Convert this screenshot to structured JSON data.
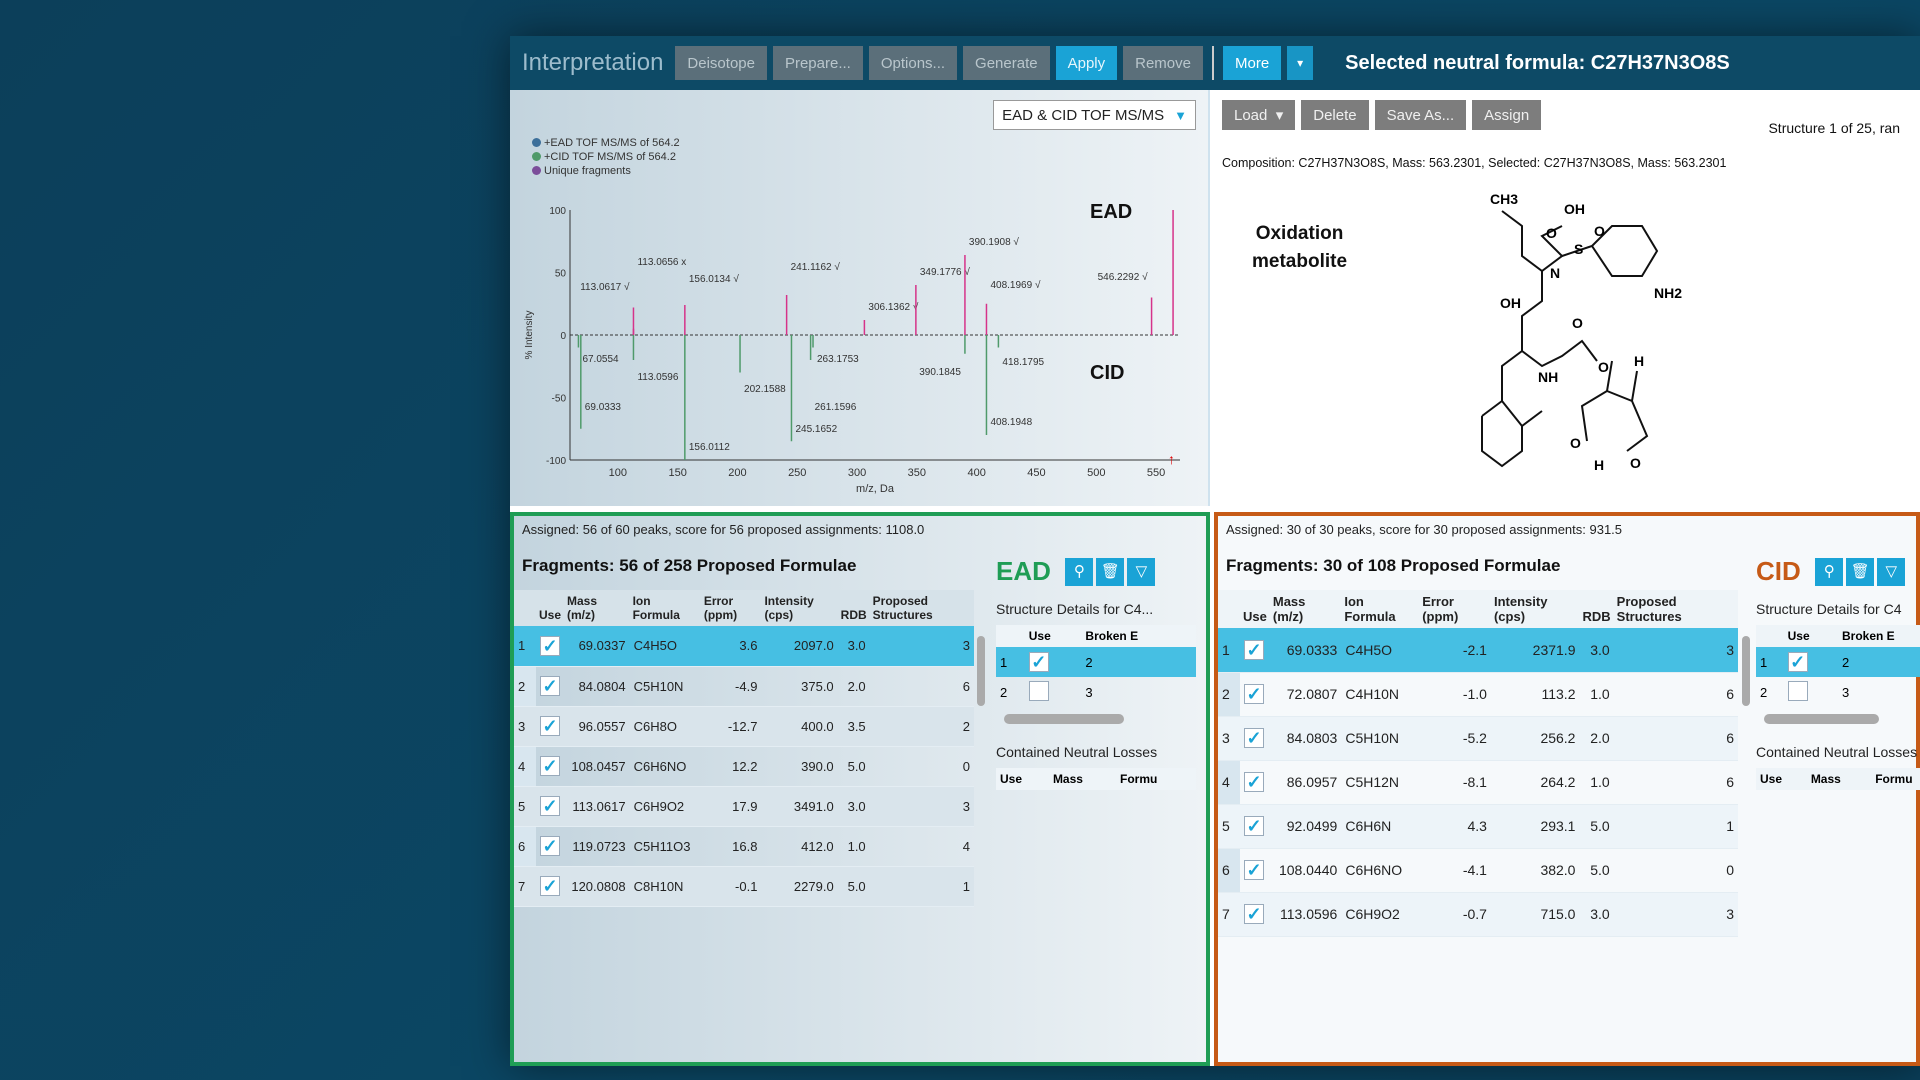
{
  "toolbar": {
    "title": "Interpretation",
    "buttons": [
      "Deisotope",
      "Prepare...",
      "Options...",
      "Generate",
      "Apply",
      "Remove"
    ],
    "more": "More",
    "caret": "▾",
    "selected_formula": "Selected neutral formula: C27H37N3O8S"
  },
  "spectrum_panel": {
    "experiment_select": "EAD & CID TOF MS/MS",
    "legend": [
      "+EAD TOF MS/MS of 564.2",
      "+CID TOF MS/MS of 564.2",
      "Unique fragments"
    ],
    "ead_label": "EAD",
    "cid_label": "CID"
  },
  "chart_data": {
    "type": "bar",
    "xlabel": "m/z, Da",
    "ylabel": "% Intensity",
    "xlim": [
      60,
      570
    ],
    "ylim": [
      -100,
      100
    ],
    "xticks": [
      100,
      150,
      200,
      250,
      300,
      350,
      400,
      450,
      500,
      550
    ],
    "yticks": [
      100,
      50,
      0,
      -50,
      -100
    ],
    "series": [
      {
        "name": "+EAD TOF MS/MS of 564.2",
        "color": "#d6338a",
        "peaks": [
          [
            113.0617,
            22,
            "113.0617 √"
          ],
          [
            113.0656,
            5,
            "113.0656 x"
          ],
          [
            156.0134,
            24,
            "156.0134 √"
          ],
          [
            241.1162,
            32,
            "241.1162 √"
          ],
          [
            306.1362,
            12,
            "306.1362 √"
          ],
          [
            349.1776,
            40,
            "349.1776 √"
          ],
          [
            390.1908,
            64,
            "390.1908 √"
          ],
          [
            408.1969,
            25,
            "408.1969 √"
          ],
          [
            546.2292,
            30,
            "546.2292 √"
          ],
          [
            564.2,
            100,
            ""
          ]
        ]
      },
      {
        "name": "+CID TOF MS/MS of 564.2",
        "color": "#4f9a6a",
        "peaks": [
          [
            67.0554,
            -10,
            "67.0554"
          ],
          [
            69.0333,
            -75,
            "69.0333"
          ],
          [
            113.0596,
            -20,
            "113.0596"
          ],
          [
            156.0112,
            -100,
            "156.0112"
          ],
          [
            202.1588,
            -30,
            "202.1588"
          ],
          [
            245.1652,
            -85,
            "245.1652"
          ],
          [
            261.1596,
            -20,
            "261.1596"
          ],
          [
            263.1753,
            -10,
            "263.1753"
          ],
          [
            390.1845,
            -15,
            "390.1845"
          ],
          [
            408.1948,
            -80,
            "408.1948"
          ],
          [
            418.1795,
            -10,
            "418.1795"
          ]
        ]
      }
    ]
  },
  "structure_panel": {
    "buttons": {
      "load": "Load",
      "delete": "Delete",
      "save_as": "Save As...",
      "assign": "Assign"
    },
    "structure_count": "Structure 1 of 25, ran",
    "composition": "Composition: C27H37N3O8S, Mass: 563.2301, Selected: C27H37N3O8S, Mass: 563.2301",
    "label_line1": "Oxidation",
    "label_line2": "metabolite",
    "atoms": {
      "ch3": "CH3",
      "oh1": "OH",
      "o1": "O",
      "o2": "O",
      "s": "S",
      "n": "N",
      "nh2": "NH2",
      "oh2": "OH",
      "o3": "O",
      "nh": "NH",
      "o4": "O",
      "h1": "H",
      "o5": "O",
      "o6": "O",
      "h2": "H"
    }
  },
  "columns": [
    "Use",
    "Mass (m/z)",
    "Ion Formula",
    "Error (ppm)",
    "Intensity (cps)",
    "RDB",
    "Proposed Structures"
  ],
  "ead": {
    "assigned": "Assigned: 56 of 60 peaks, score for 56 proposed assignments: 1108.0",
    "fragments_title": "Fragments: 56 of 258 Proposed Formulae",
    "label": "EAD",
    "rows": [
      [
        "1",
        "69.0337",
        "C4H5O",
        "3.6",
        "2097.0",
        "3.0",
        "3"
      ],
      [
        "2",
        "84.0804",
        "C5H10N",
        "-4.9",
        "375.0",
        "2.0",
        "6"
      ],
      [
        "3",
        "96.0557",
        "C6H8O",
        "-12.7",
        "400.0",
        "3.5",
        "2"
      ],
      [
        "4",
        "108.0457",
        "C6H6NO",
        "12.2",
        "390.0",
        "5.0",
        "0"
      ],
      [
        "5",
        "113.0617",
        "C6H9O2",
        "17.9",
        "3491.0",
        "3.0",
        "3"
      ],
      [
        "6",
        "119.0723",
        "C5H11O3",
        "16.8",
        "412.0",
        "1.0",
        "4"
      ],
      [
        "7",
        "120.0808",
        "C8H10N",
        "-0.1",
        "2279.0",
        "5.0",
        "1"
      ]
    ]
  },
  "cid": {
    "assigned": "Assigned: 30 of 30 peaks, score for 30 proposed assignments: 931.5",
    "fragments_title": "Fragments: 30 of 108 Proposed Formulae",
    "label": "CID",
    "rows": [
      [
        "1",
        "69.0333",
        "C4H5O",
        "-2.1",
        "2371.9",
        "3.0",
        "3"
      ],
      [
        "2",
        "72.0807",
        "C4H10N",
        "-1.0",
        "113.2",
        "1.0",
        "6"
      ],
      [
        "3",
        "84.0803",
        "C5H10N",
        "-5.2",
        "256.2",
        "2.0",
        "6"
      ],
      [
        "4",
        "86.0957",
        "C5H12N",
        "-8.1",
        "264.2",
        "1.0",
        "6"
      ],
      [
        "5",
        "92.0499",
        "C6H6N",
        "4.3",
        "293.1",
        "5.0",
        "1"
      ],
      [
        "6",
        "108.0440",
        "C6H6NO",
        "-4.1",
        "382.0",
        "5.0",
        "0"
      ],
      [
        "7",
        "113.0596",
        "C6H9O2",
        "-0.7",
        "715.0",
        "3.0",
        "3"
      ]
    ]
  },
  "structure_details": {
    "ead_title": "Structure Details for C4...",
    "cid_title": "Structure Details for C4",
    "columns": [
      "Use",
      "Broken E"
    ],
    "rows": [
      [
        "1",
        "2"
      ],
      [
        "2",
        "3"
      ]
    ],
    "neutral_losses_title": "Contained Neutral Losses",
    "neutral_columns": [
      "Use",
      "Mass",
      "Formu"
    ]
  },
  "icons": [
    "fragment-tree-icon",
    "clear-icon",
    "filter-icon"
  ],
  "colors": {
    "accent": "#1aa3d6",
    "ead": "#1f9d55",
    "cid": "#c65a16",
    "background": "#0b4460"
  }
}
